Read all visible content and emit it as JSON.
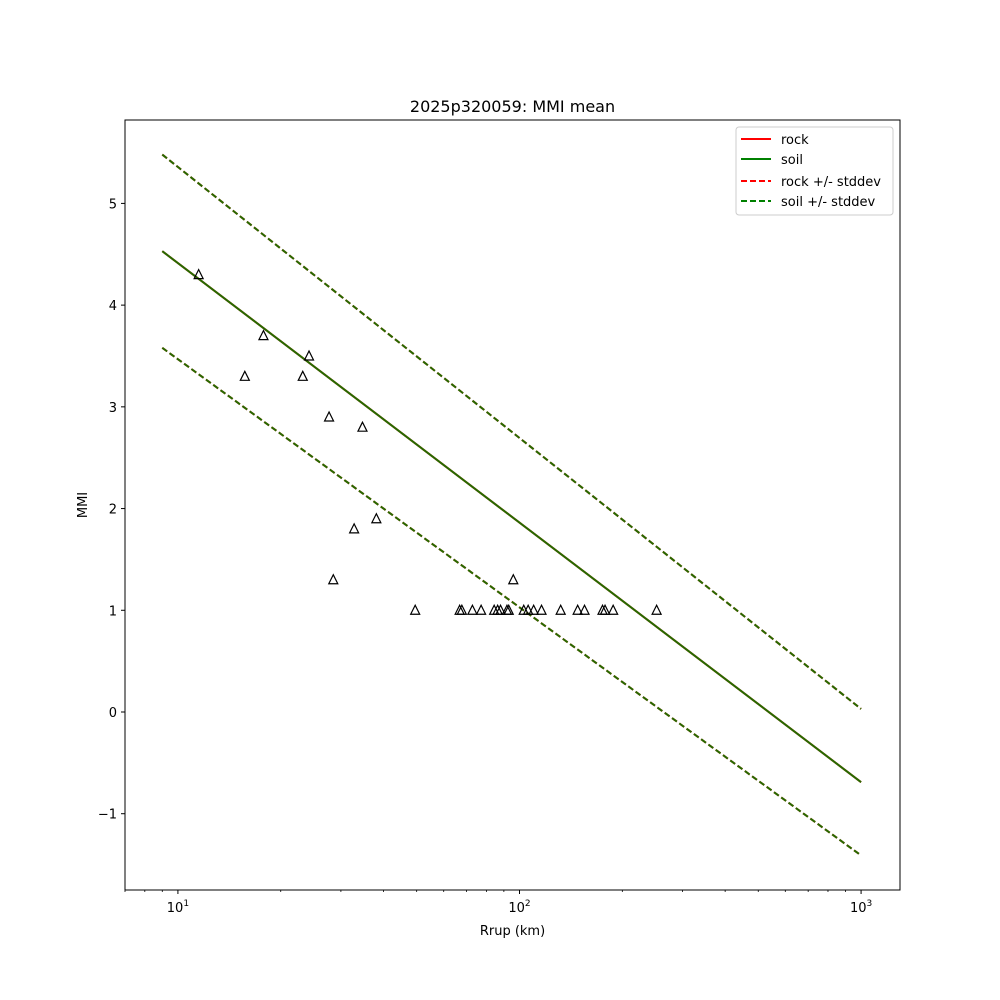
{
  "chart_data": {
    "type": "scatter",
    "title": "2025p320059: MMI mean",
    "xlabel": "Rrup (km)",
    "ylabel": "MMI",
    "xscale": "log",
    "xlim": [
      7,
      1300
    ],
    "ylim": [
      -1.75,
      5.82
    ],
    "yticks": [
      -1,
      0,
      1,
      2,
      3,
      4,
      5
    ],
    "ytick_labels": [
      "−1",
      "0",
      "1",
      "2",
      "3",
      "4",
      "5"
    ],
    "xticks": [
      10,
      100,
      1000
    ],
    "xtick_labels": [
      {
        "base": "10",
        "exp": "1"
      },
      {
        "base": "10",
        "exp": "2"
      },
      {
        "base": "10",
        "exp": "3"
      }
    ],
    "grid": false,
    "legend_placement": "top-right",
    "series": [
      {
        "name": "rock",
        "kind": "line",
        "style": "solid",
        "color": "#ff0000",
        "x": [
          9,
          1000
        ],
        "y": [
          4.53,
          -0.69
        ]
      },
      {
        "name": "soil",
        "kind": "line",
        "style": "solid",
        "color": "#008000",
        "x": [
          9,
          1000
        ],
        "y": [
          4.53,
          -0.69
        ]
      },
      {
        "name": "rock +/- stddev",
        "kind": "line",
        "style": "dashed",
        "color": "#ff0000",
        "x": [
          9,
          1000
        ],
        "y_upper": [
          5.48,
          0.03
        ],
        "y_lower": [
          3.58,
          -1.41
        ]
      },
      {
        "name": "soil +/- stddev",
        "kind": "line",
        "style": "dashed",
        "color": "#008000",
        "x": [
          9,
          1000
        ],
        "y_upper": [
          5.48,
          0.03
        ],
        "y_lower": [
          3.58,
          -1.41
        ]
      }
    ],
    "observations": {
      "marker": "triangle",
      "color": "#000000",
      "points": [
        {
          "x": 11.5,
          "y": 4.3
        },
        {
          "x": 15.7,
          "y": 3.3
        },
        {
          "x": 17.8,
          "y": 3.7
        },
        {
          "x": 23.2,
          "y": 3.3
        },
        {
          "x": 24.2,
          "y": 3.5
        },
        {
          "x": 27.7,
          "y": 2.9
        },
        {
          "x": 28.5,
          "y": 1.3
        },
        {
          "x": 32.8,
          "y": 1.8
        },
        {
          "x": 34.7,
          "y": 2.8
        },
        {
          "x": 38.1,
          "y": 1.9
        },
        {
          "x": 49.5,
          "y": 1.0
        },
        {
          "x": 66.8,
          "y": 1.0
        },
        {
          "x": 67.8,
          "y": 1.0
        },
        {
          "x": 72.8,
          "y": 1.0
        },
        {
          "x": 77.2,
          "y": 1.0
        },
        {
          "x": 84.3,
          "y": 1.0
        },
        {
          "x": 86.3,
          "y": 1.0
        },
        {
          "x": 88.0,
          "y": 1.0
        },
        {
          "x": 91.9,
          "y": 1.0
        },
        {
          "x": 93.0,
          "y": 1.0
        },
        {
          "x": 95.9,
          "y": 1.3
        },
        {
          "x": 102.9,
          "y": 1.0
        },
        {
          "x": 106.0,
          "y": 1.0
        },
        {
          "x": 110.0,
          "y": 1.0
        },
        {
          "x": 116.0,
          "y": 1.0
        },
        {
          "x": 132.0,
          "y": 1.0
        },
        {
          "x": 148.0,
          "y": 1.0
        },
        {
          "x": 155.0,
          "y": 1.0
        },
        {
          "x": 175.0,
          "y": 1.0
        },
        {
          "x": 178.0,
          "y": 1.0
        },
        {
          "x": 188.0,
          "y": 1.0
        },
        {
          "x": 252.0,
          "y": 1.0
        }
      ]
    }
  }
}
